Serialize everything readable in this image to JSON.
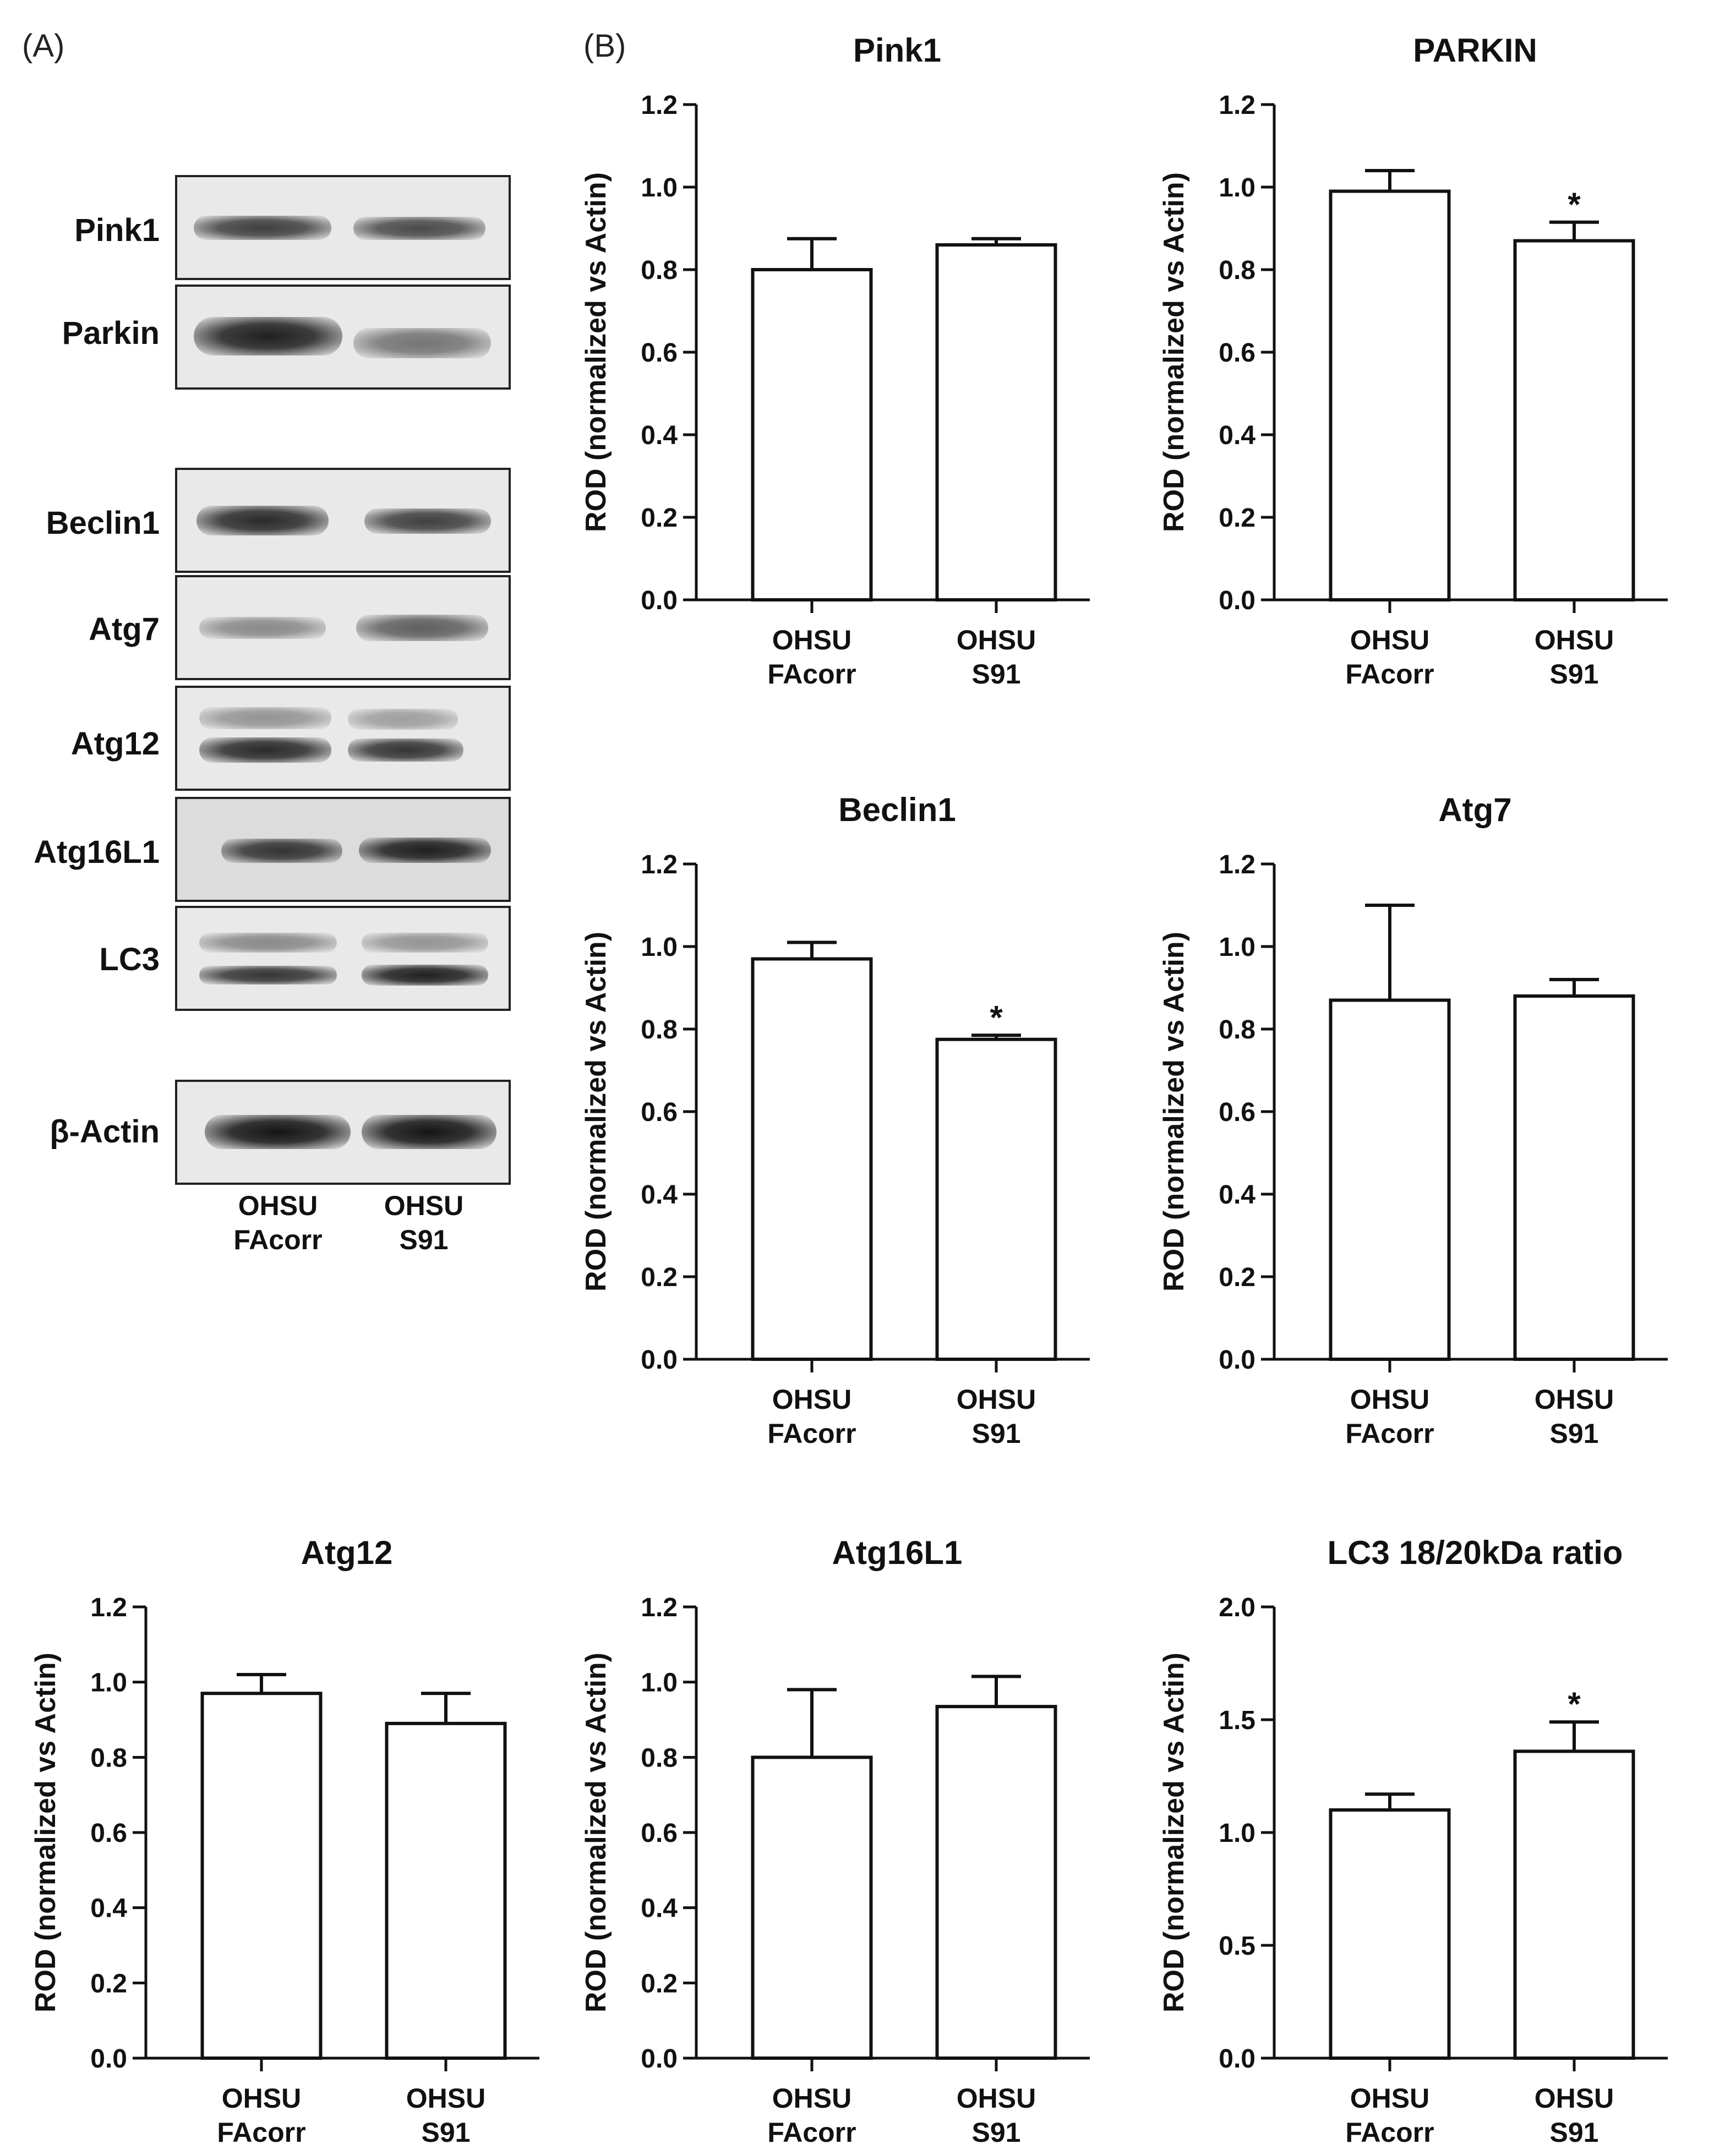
{
  "panels": {
    "a": "(A)",
    "b": "(B)"
  },
  "western_blot": {
    "rows": [
      "Pink1",
      "Parkin",
      "Beclin1",
      "Atg7",
      "Atg12",
      "Atg16L1",
      "LC3",
      "β-Actin"
    ],
    "lanes": [
      {
        "line1": "OHSU",
        "line2": "FAcorr"
      },
      {
        "line1": "OHSU",
        "line2": "S91"
      }
    ]
  },
  "chart_data": [
    {
      "type": "bar",
      "title": "Pink1",
      "ylabel": "ROD (normalized vs Actin)",
      "categories": [
        [
          "OHSU",
          "FAcorr"
        ],
        [
          "OHSU",
          "S91"
        ]
      ],
      "values": [
        0.8,
        0.86
      ],
      "error": [
        0.075,
        0.015
      ],
      "significance": [
        "",
        ""
      ],
      "ylim": [
        0,
        1.2
      ],
      "yticks": [
        "0.0",
        "0.2",
        "0.4",
        "0.6",
        "0.8",
        "1.0",
        "1.2"
      ]
    },
    {
      "type": "bar",
      "title": "PARKIN",
      "ylabel": "ROD (normalized vs Actin)",
      "categories": [
        [
          "OHSU",
          "FAcorr"
        ],
        [
          "OHSU",
          "S91"
        ]
      ],
      "values": [
        0.99,
        0.87
      ],
      "error": [
        0.05,
        0.045
      ],
      "significance": [
        "",
        "*"
      ],
      "ylim": [
        0,
        1.2
      ],
      "yticks": [
        "0.0",
        "0.2",
        "0.4",
        "0.6",
        "0.8",
        "1.0",
        "1.2"
      ]
    },
    {
      "type": "bar",
      "title": "Beclin1",
      "ylabel": "ROD (normalized vs Actin)",
      "categories": [
        [
          "OHSU",
          "FAcorr"
        ],
        [
          "OHSU",
          "S91"
        ]
      ],
      "values": [
        0.97,
        0.775
      ],
      "error": [
        0.04,
        0.01
      ],
      "significance": [
        "",
        "*"
      ],
      "ylim": [
        0,
        1.2
      ],
      "yticks": [
        "0.0",
        "0.2",
        "0.4",
        "0.6",
        "0.8",
        "1.0",
        "1.2"
      ]
    },
    {
      "type": "bar",
      "title": "Atg7",
      "ylabel": "ROD (normalized vs Actin)",
      "categories": [
        [
          "OHSU",
          "FAcorr"
        ],
        [
          "OHSU",
          "S91"
        ]
      ],
      "values": [
        0.87,
        0.88
      ],
      "error": [
        0.23,
        0.04
      ],
      "significance": [
        "",
        ""
      ],
      "ylim": [
        0,
        1.2
      ],
      "yticks": [
        "0.0",
        "0.2",
        "0.4",
        "0.6",
        "0.8",
        "1.0",
        "1.2"
      ]
    },
    {
      "type": "bar",
      "title": "Atg12",
      "ylabel": "ROD (normalized vs Actin)",
      "categories": [
        [
          "OHSU",
          "FAcorr"
        ],
        [
          "OHSU",
          "S91"
        ]
      ],
      "values": [
        0.97,
        0.89
      ],
      "error": [
        0.05,
        0.08
      ],
      "significance": [
        "",
        ""
      ],
      "ylim": [
        0,
        1.2
      ],
      "yticks": [
        "0.0",
        "0.2",
        "0.4",
        "0.6",
        "0.8",
        "1.0",
        "1.2"
      ]
    },
    {
      "type": "bar",
      "title": "Atg16L1",
      "ylabel": "ROD (normalized vs Actin)",
      "categories": [
        [
          "OHSU",
          "FAcorr"
        ],
        [
          "OHSU",
          "S91"
        ]
      ],
      "values": [
        0.8,
        0.935
      ],
      "error": [
        0.18,
        0.08
      ],
      "significance": [
        "",
        ""
      ],
      "ylim": [
        0,
        1.2
      ],
      "yticks": [
        "0.0",
        "0.2",
        "0.4",
        "0.6",
        "0.8",
        "1.0",
        "1.2"
      ]
    },
    {
      "type": "bar",
      "title": "LC3 18/20kDa ratio",
      "ylabel": "ROD (normalized vs Actin)",
      "categories": [
        [
          "OHSU",
          "FAcorr"
        ],
        [
          "OHSU",
          "S91"
        ]
      ],
      "values": [
        1.1,
        1.36
      ],
      "error": [
        0.07,
        0.13
      ],
      "significance": [
        "",
        "*"
      ],
      "ylim": [
        0,
        2.0
      ],
      "yticks": [
        "0.0",
        "0.5",
        "1.0",
        "1.5",
        "2.0"
      ]
    }
  ]
}
